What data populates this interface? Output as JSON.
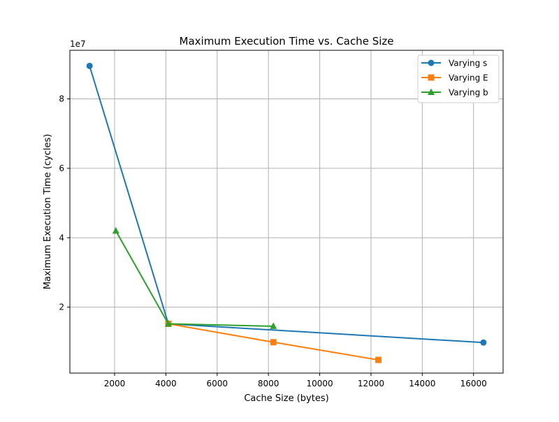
{
  "chart_data": {
    "type": "line",
    "title": "Maximum Execution Time vs. Cache Size",
    "xlabel": "Cache Size (bytes)",
    "ylabel": "Maximum Execution Time (cycles)",
    "y_scale_label": "1e7",
    "xlim": [
      256,
      17152
    ],
    "ylim": [
      1000000,
      94000000
    ],
    "x_ticks": [
      2000,
      4000,
      6000,
      8000,
      10000,
      12000,
      14000,
      16000
    ],
    "y_ticks": [
      20000000,
      40000000,
      60000000,
      80000000
    ],
    "y_tick_labels": [
      "2",
      "4",
      "6",
      "8"
    ],
    "grid": true,
    "legend": "top-right",
    "series": [
      {
        "name": "Varying s",
        "color": "#1f77b4",
        "marker": "circle",
        "x": [
          1024,
          4096,
          16384
        ],
        "y": [
          89500000,
          15200000,
          9800000
        ]
      },
      {
        "name": "Varying E",
        "color": "#ff7f0e",
        "marker": "square",
        "x": [
          4096,
          8192,
          12288
        ],
        "y": [
          15200000,
          9900000,
          4800000
        ]
      },
      {
        "name": "Varying b",
        "color": "#2ca02c",
        "marker": "triangle",
        "x": [
          2048,
          4096,
          8192
        ],
        "y": [
          42000000,
          15200000,
          14500000
        ]
      }
    ]
  }
}
